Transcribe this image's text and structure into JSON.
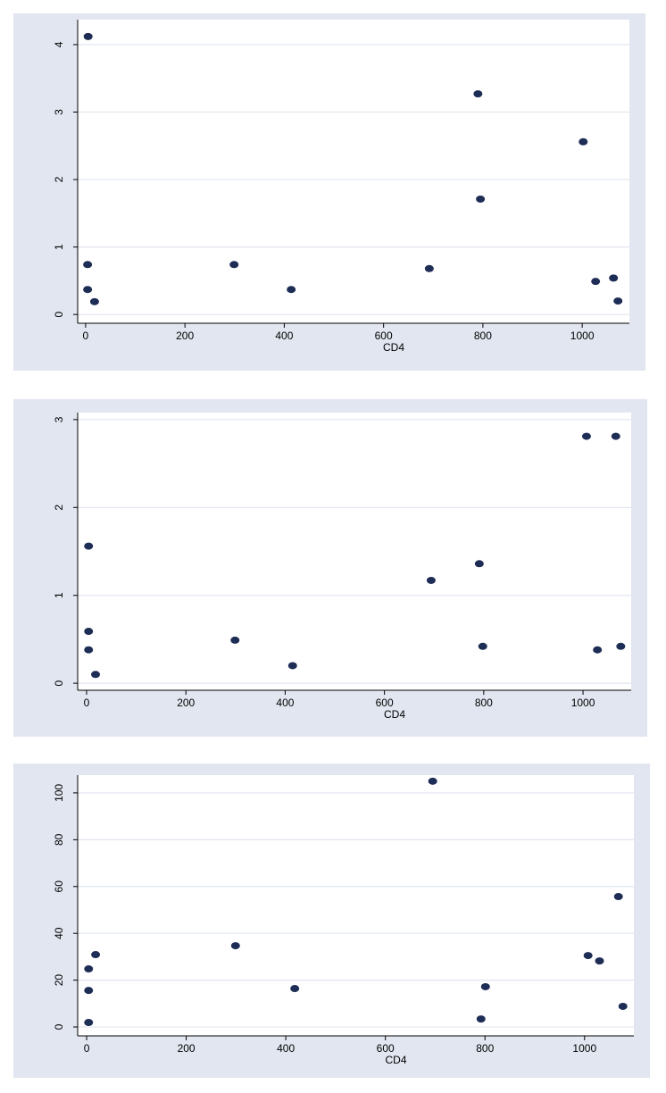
{
  "chart_data": [
    {
      "type": "scatter",
      "x_label": "CD4",
      "color": "#1e2d55",
      "grid": true,
      "x": [
        5,
        790,
        1002,
        795,
        4,
        299,
        692,
        4,
        414,
        18,
        1027,
        1063,
        1072
      ],
      "values": [
        4.12,
        3.27,
        2.56,
        1.71,
        0.74,
        0.74,
        0.68,
        0.37,
        0.37,
        0.19,
        0.49,
        0.54,
        0.2
      ],
      "xlim": [
        -16,
        1095
      ],
      "ylim": [
        -0.13,
        4.37
      ],
      "xticks": [
        0,
        200,
        400,
        600,
        800,
        1000
      ],
      "yticks": [
        0,
        1,
        2,
        3,
        4
      ]
    },
    {
      "type": "scatter",
      "x_label": "CD4",
      "color": "#1e2d55",
      "grid": true,
      "x": [
        4,
        1007,
        1066,
        791,
        694,
        4,
        4,
        299,
        18,
        415,
        798,
        1029,
        1076
      ],
      "values": [
        1.56,
        2.81,
        2.81,
        1.36,
        1.17,
        0.59,
        0.38,
        0.49,
        0.1,
        0.2,
        0.42,
        0.38,
        0.42
      ],
      "xlim": [
        -18,
        1097
      ],
      "ylim": [
        -0.08,
        3.08
      ],
      "xticks": [
        0,
        200,
        400,
        600,
        800,
        1000
      ],
      "yticks": [
        0,
        1,
        2,
        3
      ]
    },
    {
      "type": "scatter",
      "x_label": "CD4",
      "color": "#1e2d55",
      "grid": true,
      "x": [
        695,
        1068,
        299,
        18,
        4,
        1007,
        1030,
        4,
        418,
        801,
        1077,
        792,
        4
      ],
      "values": [
        105,
        55.7,
        34.7,
        30.9,
        24.8,
        30.5,
        28.2,
        15.6,
        16.4,
        17.2,
        8.8,
        3.4,
        1.9
      ],
      "xlim": [
        -18,
        1099
      ],
      "ylim": [
        -3.8,
        107.6
      ],
      "xticks": [
        0,
        200,
        400,
        600,
        800,
        1000
      ],
      "yticks": [
        0,
        20,
        40,
        60,
        80,
        100
      ]
    }
  ]
}
